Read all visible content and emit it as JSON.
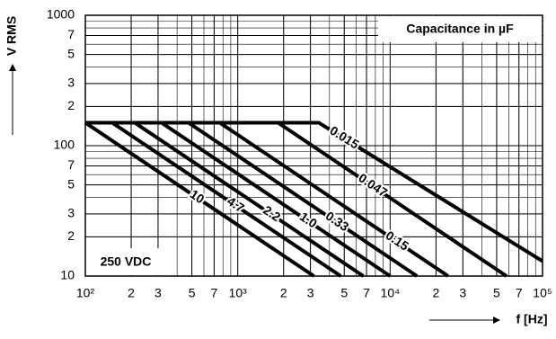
{
  "chart_data": {
    "type": "line",
    "ylabel": "V RMS",
    "xlabel": "f [Hz]",
    "legend_title": "Capacitance in µF",
    "annotation": "250 VDC",
    "xscale": "log",
    "yscale": "log",
    "grid": true,
    "xlim": [
      100,
      100000
    ],
    "ylim": [
      10,
      1000
    ],
    "xticks": [
      {
        "value": 100,
        "label": "10²"
      },
      {
        "value": 200,
        "label": "2"
      },
      {
        "value": 300,
        "label": "3"
      },
      {
        "value": 500,
        "label": "5"
      },
      {
        "value": 700,
        "label": "7"
      },
      {
        "value": 1000,
        "label": "10³"
      },
      {
        "value": 2000,
        "label": "2"
      },
      {
        "value": 3000,
        "label": "3"
      },
      {
        "value": 5000,
        "label": "5"
      },
      {
        "value": 7000,
        "label": "7"
      },
      {
        "value": 10000,
        "label": "10⁴"
      },
      {
        "value": 20000,
        "label": "2"
      },
      {
        "value": 30000,
        "label": "3"
      },
      {
        "value": 50000,
        "label": "5"
      },
      {
        "value": 70000,
        "label": "7"
      },
      {
        "value": 100000,
        "label": "10⁵"
      }
    ],
    "yticks": [
      10,
      {
        "value": 20,
        "label": "2"
      },
      {
        "value": 30,
        "label": "3"
      },
      {
        "value": 50,
        "label": "5"
      },
      {
        "value": 70,
        "label": "7"
      },
      100,
      {
        "value": 200,
        "label": "2"
      },
      {
        "value": 300,
        "label": "3"
      },
      {
        "value": 500,
        "label": "5"
      },
      {
        "value": 700,
        "label": "7"
      },
      1000
    ],
    "series": [
      {
        "name": "10",
        "color": "#000000",
        "x": [
          100,
          3160
        ],
        "values": [
          150,
          10
        ]
      },
      {
        "name": "4.7",
        "color": "#000000",
        "x": [
          100,
          150,
          4740
        ],
        "values": [
          150,
          150,
          10
        ]
      },
      {
        "name": "2.2",
        "color": "#000000",
        "x": [
          100,
          211,
          6670
        ],
        "values": [
          150,
          150,
          10
        ]
      },
      {
        "name": "1.0",
        "color": "#000000",
        "x": [
          100,
          316,
          10000
        ],
        "values": [
          150,
          150,
          10
        ]
      },
      {
        "name": "0.33",
        "color": "#000000",
        "x": [
          100,
          475,
          15000
        ],
        "values": [
          150,
          150,
          10
        ]
      },
      {
        "name": "0.15",
        "color": "#000000",
        "x": [
          100,
          762,
          24000
        ],
        "values": [
          150,
          150,
          10
        ]
      },
      {
        "name": "0.047",
        "color": "#000000",
        "x": [
          100,
          1840,
          58000
        ],
        "values": [
          150,
          150,
          10
        ]
      },
      {
        "name": "0.015",
        "color": "#000000",
        "x": [
          100,
          3400,
          100000
        ],
        "values": [
          150,
          150,
          13
        ]
      }
    ]
  }
}
